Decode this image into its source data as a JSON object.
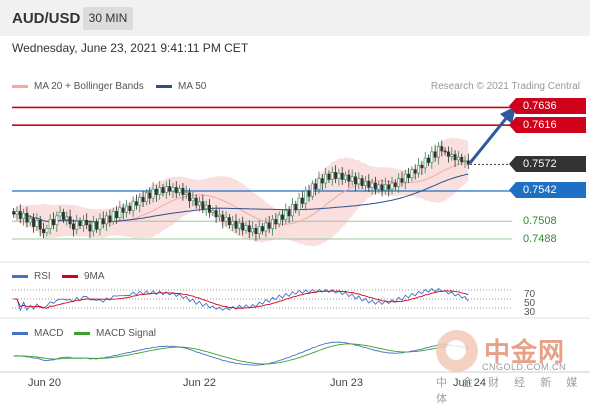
{
  "header": {
    "symbol": "AUD/USD",
    "timeframe": "30 MIN"
  },
  "datetime": "Wednesday, June 23, 2021 9:41:11 PM CET",
  "legend": {
    "ma20_bb": "MA 20 + Bollinger Bands",
    "ma50": "MA 50",
    "credit": "Research © 2021 Trading Central"
  },
  "levels": {
    "r1": "0.7636",
    "r2": "0.7616",
    "last": "0.7572",
    "s1": "0.7542",
    "s2": "0.7508",
    "s3": "0.7488"
  },
  "rsi": {
    "label": "RSI",
    "ma_label": "9MA",
    "lvl70": "70",
    "lvl50": "50",
    "lvl30": "30"
  },
  "macd": {
    "label": "MACD",
    "signal_label": "MACD Signal"
  },
  "xaxis": [
    "Jun 20",
    "Jun 22",
    "Jun 23",
    "Jun 24"
  ],
  "colors": {
    "resistance": "#d0021b",
    "support": "#1f6fc5",
    "target": "#2e8b2e",
    "bb": "#f6c9c9",
    "ma50": "#2c4f8a",
    "rsi": "#4472c4",
    "rsi_ma": "#d0021b",
    "macd": "#4472c4",
    "macd_signal": "#3aa02f"
  },
  "watermark": {
    "brand_cn": "中金网",
    "url": "CNGOLD.COM.CN",
    "tagline": "中 金 财 经 新 媒 体"
  },
  "chart_data": {
    "type": "candlestick",
    "series": [
      {
        "name": "MA 20 + Bollinger Bands"
      },
      {
        "name": "MA 50"
      }
    ],
    "close": [
      0.7516,
      0.7519,
      0.7511,
      0.7517,
      0.7507,
      0.7511,
      0.7502,
      0.7509,
      0.7499,
      0.7495,
      0.75,
      0.751,
      0.7504,
      0.7514,
      0.7518,
      0.751,
      0.7513,
      0.7505,
      0.7499,
      0.7508,
      0.7503,
      0.7509,
      0.7504,
      0.7497,
      0.7507,
      0.7499,
      0.7511,
      0.7505,
      0.7514,
      0.7508,
      0.7519,
      0.7512,
      0.7523,
      0.7518,
      0.7525,
      0.752,
      0.753,
      0.7526,
      0.7535,
      0.753,
      0.754,
      0.7534,
      0.7544,
      0.7538,
      0.7546,
      0.754,
      0.7547,
      0.7542,
      0.7546,
      0.754,
      0.7545,
      0.7538,
      0.754,
      0.7531,
      0.7534,
      0.7526,
      0.753,
      0.7522,
      0.7526,
      0.7518,
      0.752,
      0.7513,
      0.7515,
      0.7508,
      0.7512,
      0.7504,
      0.7508,
      0.75,
      0.7506,
      0.7498,
      0.7503,
      0.7496,
      0.75,
      0.7494,
      0.7502,
      0.7497,
      0.7506,
      0.75,
      0.751,
      0.7505,
      0.7515,
      0.751,
      0.752,
      0.7514,
      0.7527,
      0.7521,
      0.7534,
      0.7528,
      0.7542,
      0.7536,
      0.755,
      0.7544,
      0.7556,
      0.7551,
      0.7561,
      0.7555,
      0.7563,
      0.7556,
      0.7562,
      0.7555,
      0.756,
      0.7553,
      0.7558,
      0.755,
      0.7556,
      0.7548,
      0.7553,
      0.7546,
      0.7551,
      0.7544,
      0.7549,
      0.7543,
      0.7549,
      0.7544,
      0.7551,
      0.7547,
      0.7556,
      0.7552,
      0.7561,
      0.7557,
      0.7566,
      0.7562,
      0.7571,
      0.7568,
      0.7579,
      0.7574,
      0.7586,
      0.758,
      0.7592,
      0.7587,
      0.7586,
      0.7581,
      0.7583,
      0.7577,
      0.758,
      0.7575,
      0.7576,
      0.7572
    ],
    "levels": {
      "resistance": [
        0.7636,
        0.7616
      ],
      "last": 0.7572,
      "support": [
        0.7542
      ],
      "targets": [
        0.7508,
        0.7488
      ]
    },
    "x_ticks": [
      "Jun 20",
      "Jun 22",
      "Jun 23",
      "Jun 24"
    ],
    "rsi_levels": [
      70,
      50,
      30
    ]
  }
}
